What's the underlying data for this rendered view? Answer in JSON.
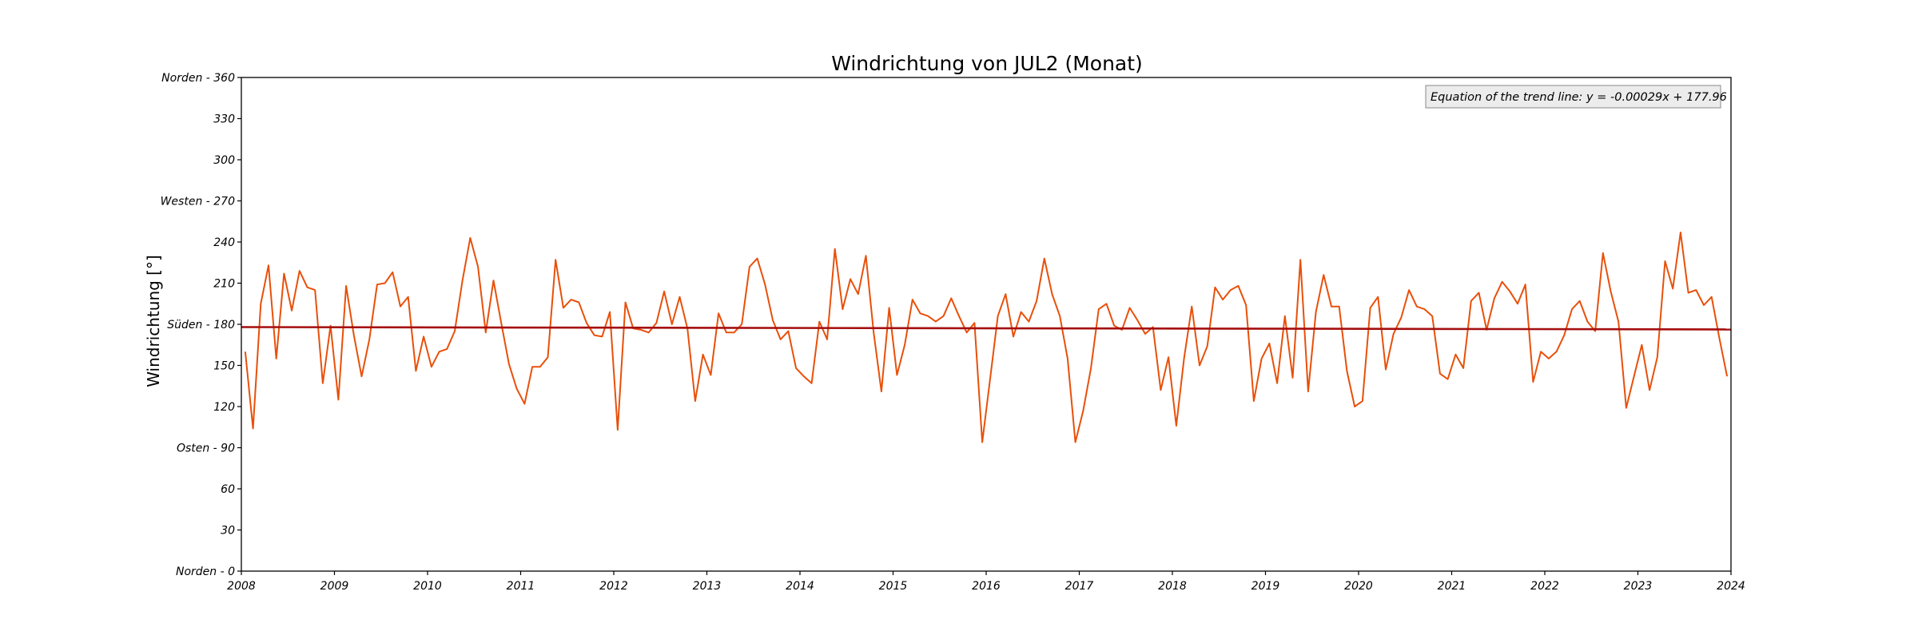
{
  "chart_data": {
    "type": "line",
    "title": "Windrichtung von JUL2 (Monat)",
    "xlabel": "",
    "ylabel": "Windrichtung [°]",
    "xlim": [
      2008,
      2024
    ],
    "ylim": [
      0,
      360
    ],
    "x_ticks": [
      "2008",
      "2009",
      "2010",
      "2011",
      "2012",
      "2013",
      "2014",
      "2015",
      "2016",
      "2017",
      "2018",
      "2019",
      "2020",
      "2021",
      "2022",
      "2023",
      "2024"
    ],
    "y_ticks": [
      {
        "value": 0,
        "label": "Norden - 0"
      },
      {
        "value": 30,
        "label": "30"
      },
      {
        "value": 60,
        "label": "60"
      },
      {
        "value": 90,
        "label": "Osten - 90"
      },
      {
        "value": 120,
        "label": "120"
      },
      {
        "value": 150,
        "label": "150"
      },
      {
        "value": 180,
        "label": "Süden - 180"
      },
      {
        "value": 210,
        "label": "210"
      },
      {
        "value": 240,
        "label": "240"
      },
      {
        "value": 270,
        "label": "Westen - 270"
      },
      {
        "value": 300,
        "label": "300"
      },
      {
        "value": 330,
        "label": "330"
      },
      {
        "value": 360,
        "label": "Norden - 360"
      }
    ],
    "grid": false,
    "legend_position": "top-right",
    "series": [
      {
        "color": "#e8500a",
        "x_start": "2008-01",
        "frequency": "monthly",
        "values": [
          160,
          104,
          195,
          223,
          155,
          217,
          190,
          219,
          207,
          205,
          137,
          179,
          125,
          208,
          172,
          142,
          169,
          209,
          210,
          218,
          193,
          200,
          146,
          171,
          149,
          160,
          162,
          175,
          212,
          243,
          222,
          174,
          212,
          181,
          151,
          133,
          122,
          149,
          149,
          156,
          227,
          192,
          198,
          196,
          181,
          172,
          171,
          189,
          103,
          196,
          177,
          176,
          174,
          181,
          204,
          180,
          200,
          177,
          124,
          158,
          143,
          188,
          174,
          174,
          180,
          222,
          228,
          209,
          183,
          169,
          175,
          148,
          142,
          137,
          182,
          169,
          235,
          191,
          213,
          202,
          230,
          174,
          131,
          192,
          143,
          165,
          198,
          188,
          186,
          182,
          186,
          199,
          186,
          174,
          181,
          94,
          140,
          186,
          202,
          171,
          189,
          182,
          197,
          228,
          202,
          186,
          155,
          94,
          117,
          148,
          191,
          195,
          179,
          176,
          192,
          183,
          173,
          178,
          132,
          156,
          106,
          155,
          193,
          150,
          164,
          207,
          198,
          205,
          208,
          194,
          124,
          155,
          166,
          137,
          186,
          141,
          227,
          131,
          189,
          216,
          193,
          193,
          146,
          120,
          124,
          192,
          200,
          147,
          173,
          185,
          205,
          193,
          191,
          186,
          144,
          140,
          158,
          148,
          197,
          203,
          176,
          199,
          211,
          204,
          195,
          209,
          138,
          160,
          155,
          160,
          172,
          191,
          197,
          182,
          175,
          232,
          204,
          182,
          119,
          142,
          165,
          132,
          156,
          226,
          206,
          247,
          203,
          205,
          194,
          200,
          170,
          142
        ]
      },
      {
        "name": "trend",
        "color": "#a50f0f",
        "slope_per_day": -0.00029,
        "intercept": 177.96
      }
    ],
    "annotations": [
      {
        "text": "Equation of the trend line: y = -0.00029x + 177.96",
        "position": "top-right"
      }
    ]
  }
}
